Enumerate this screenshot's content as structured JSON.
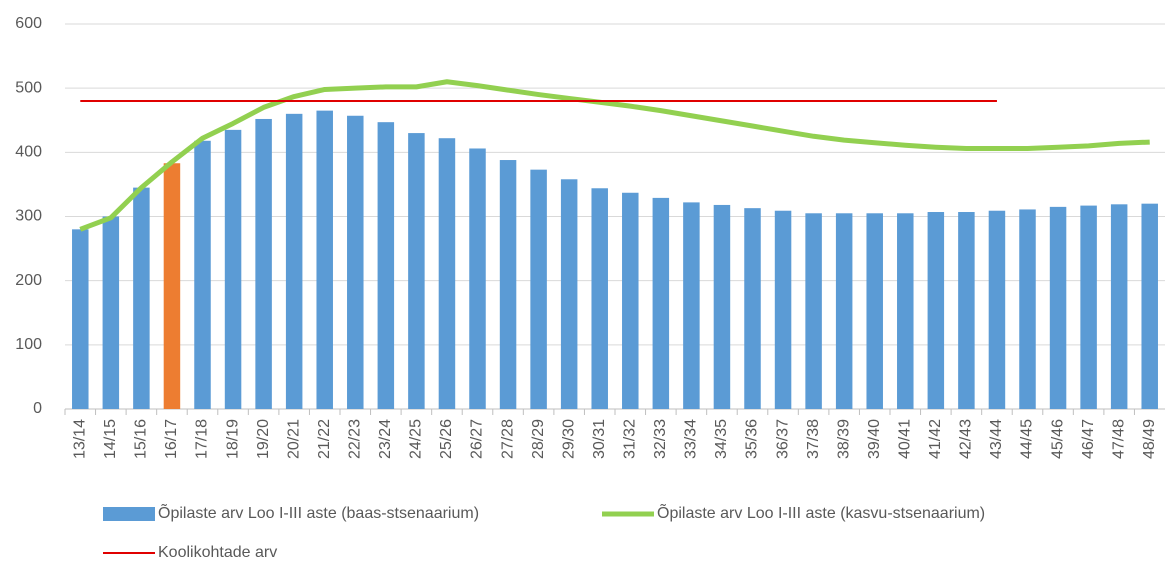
{
  "chart_data": {
    "type": "bar",
    "categories": [
      "13/14",
      "14/15",
      "15/16",
      "16/17",
      "17/18",
      "18/19",
      "19/20",
      "20/21",
      "21/22",
      "22/23",
      "23/24",
      "24/25",
      "25/26",
      "26/27",
      "27/28",
      "28/29",
      "29/30",
      "30/31",
      "31/32",
      "32/33",
      "33/34",
      "34/35",
      "35/36",
      "36/37",
      "37/38",
      "38/39",
      "39/40",
      "40/41",
      "41/42",
      "42/43",
      "43/44",
      "44/45",
      "45/46",
      "46/47",
      "47/48",
      "48/49"
    ],
    "series": [
      {
        "name": "Õpilaste arv Loo I-III aste (baas-stsenaarium)",
        "type": "bar",
        "color": "#5b9bd5",
        "colors": [
          "#5b9bd5",
          "#5b9bd5",
          "#5b9bd5",
          "#ed7d31",
          "#5b9bd5",
          "#5b9bd5",
          "#5b9bd5",
          "#5b9bd5",
          "#5b9bd5",
          "#5b9bd5",
          "#5b9bd5",
          "#5b9bd5",
          "#5b9bd5",
          "#5b9bd5",
          "#5b9bd5",
          "#5b9bd5",
          "#5b9bd5",
          "#5b9bd5",
          "#5b9bd5",
          "#5b9bd5",
          "#5b9bd5",
          "#5b9bd5",
          "#5b9bd5",
          "#5b9bd5",
          "#5b9bd5",
          "#5b9bd5",
          "#5b9bd5",
          "#5b9bd5",
          "#5b9bd5",
          "#5b9bd5",
          "#5b9bd5",
          "#5b9bd5",
          "#5b9bd5",
          "#5b9bd5",
          "#5b9bd5",
          "#5b9bd5"
        ],
        "values": [
          280,
          300,
          345,
          383,
          418,
          435,
          452,
          460,
          465,
          457,
          447,
          430,
          422,
          406,
          388,
          373,
          358,
          344,
          337,
          329,
          322,
          318,
          313,
          309,
          305,
          305,
          305,
          305,
          307,
          307,
          309,
          311,
          315,
          317,
          319,
          320
        ]
      },
      {
        "name": "Õpilaste arv Loo I-III aste (kasvu-stsenaarium)",
        "type": "line",
        "color": "#92d050",
        "width": 5,
        "values": [
          280,
          298,
          345,
          385,
          422,
          445,
          470,
          487,
          498,
          500,
          502,
          502,
          510,
          504,
          497,
          490,
          484,
          478,
          472,
          465,
          457,
          449,
          441,
          433,
          425,
          419,
          415,
          411,
          408,
          406,
          406,
          406,
          408,
          410,
          414,
          416
        ]
      },
      {
        "name": "Koolikohtade arv",
        "type": "line",
        "color": "#e00000",
        "width": 2,
        "values": [
          480,
          480,
          480,
          480,
          480,
          480,
          480,
          480,
          480,
          480,
          480,
          480,
          480,
          480,
          480,
          480,
          480,
          480,
          480,
          480,
          480,
          480,
          480,
          480,
          480,
          480,
          480,
          480,
          480,
          480,
          480,
          null,
          null,
          null,
          null,
          null
        ]
      }
    ],
    "ylim": [
      0,
      600
    ],
    "yticks": [
      0,
      100,
      200,
      300,
      400,
      500,
      600
    ],
    "grid": true
  }
}
